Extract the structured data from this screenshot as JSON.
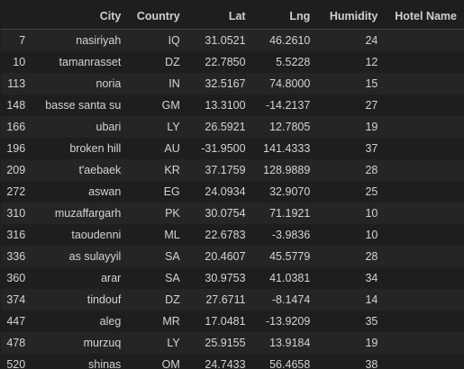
{
  "table": {
    "headers": {
      "index": "",
      "city": "City",
      "country": "Country",
      "lat": "Lat",
      "lng": "Lng",
      "humidity": "Humidity",
      "hotel": "Hotel Name"
    },
    "rows": [
      {
        "index": "7",
        "city": "nasiriyah",
        "country": "IQ",
        "lat": "31.0521",
        "lng": "46.2610",
        "humidity": "24",
        "hotel": ""
      },
      {
        "index": "10",
        "city": "tamanrasset",
        "country": "DZ",
        "lat": "22.7850",
        "lng": "5.5228",
        "humidity": "12",
        "hotel": ""
      },
      {
        "index": "113",
        "city": "noria",
        "country": "IN",
        "lat": "32.5167",
        "lng": "74.8000",
        "humidity": "15",
        "hotel": ""
      },
      {
        "index": "148",
        "city": "basse santa su",
        "country": "GM",
        "lat": "13.3100",
        "lng": "-14.2137",
        "humidity": "27",
        "hotel": ""
      },
      {
        "index": "166",
        "city": "ubari",
        "country": "LY",
        "lat": "26.5921",
        "lng": "12.7805",
        "humidity": "19",
        "hotel": ""
      },
      {
        "index": "196",
        "city": "broken hill",
        "country": "AU",
        "lat": "-31.9500",
        "lng": "141.4333",
        "humidity": "37",
        "hotel": ""
      },
      {
        "index": "209",
        "city": "t'aebaek",
        "country": "KR",
        "lat": "37.1759",
        "lng": "128.9889",
        "humidity": "28",
        "hotel": ""
      },
      {
        "index": "272",
        "city": "aswan",
        "country": "EG",
        "lat": "24.0934",
        "lng": "32.9070",
        "humidity": "25",
        "hotel": ""
      },
      {
        "index": "310",
        "city": "muzaffargarh",
        "country": "PK",
        "lat": "30.0754",
        "lng": "71.1921",
        "humidity": "10",
        "hotel": ""
      },
      {
        "index": "316",
        "city": "taoudenni",
        "country": "ML",
        "lat": "22.6783",
        "lng": "-3.9836",
        "humidity": "10",
        "hotel": ""
      },
      {
        "index": "336",
        "city": "as sulayyil",
        "country": "SA",
        "lat": "20.4607",
        "lng": "45.5779",
        "humidity": "28",
        "hotel": ""
      },
      {
        "index": "360",
        "city": "arar",
        "country": "SA",
        "lat": "30.9753",
        "lng": "41.0381",
        "humidity": "34",
        "hotel": ""
      },
      {
        "index": "374",
        "city": "tindouf",
        "country": "DZ",
        "lat": "27.6711",
        "lng": "-8.1474",
        "humidity": "14",
        "hotel": ""
      },
      {
        "index": "447",
        "city": "aleg",
        "country": "MR",
        "lat": "17.0481",
        "lng": "-13.9209",
        "humidity": "35",
        "hotel": ""
      },
      {
        "index": "478",
        "city": "murzuq",
        "country": "LY",
        "lat": "25.9155",
        "lng": "13.9184",
        "humidity": "19",
        "hotel": ""
      },
      {
        "index": "520",
        "city": "shinas",
        "country": "OM",
        "lat": "24.7433",
        "lng": "56.4658",
        "humidity": "38",
        "hotel": ""
      }
    ]
  }
}
